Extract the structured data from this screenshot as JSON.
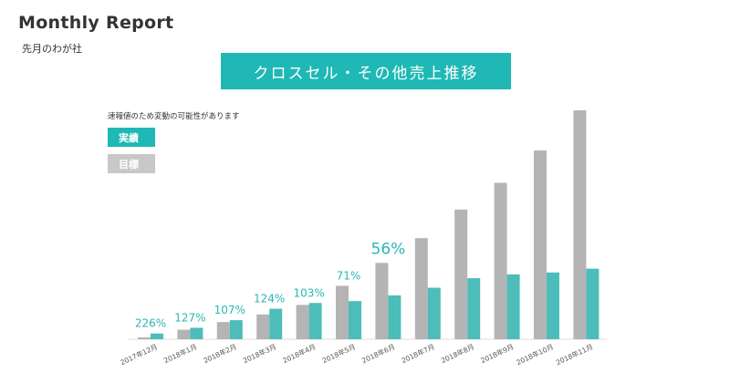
{
  "header": {
    "title": "Monthly Report",
    "subtitle": "先月のわが社"
  },
  "chart_data": {
    "type": "bar",
    "title": "クロスセル・その他売上推移",
    "note": "速報値のため変動の可能性があります",
    "legend": [
      "実績",
      "目標"
    ],
    "legend_position": "top-left",
    "grid": false,
    "categories": [
      "2017年12月",
      "2018年1月",
      "2018年2月",
      "2018年3月",
      "2018年4月",
      "2018年5月",
      "2018年6月",
      "2018年7月",
      "2018年8月",
      "2018年9月",
      "2018年10月",
      "2018年11月"
    ],
    "series": [
      {
        "name": "目標",
        "values": [
          1,
          5,
          9,
          13,
          18,
          28,
          40,
          53,
          68,
          82,
          99,
          120
        ],
        "color": "#b4b4b4"
      },
      {
        "name": "実績",
        "values": [
          3,
          6,
          10,
          16,
          19,
          20,
          23,
          27,
          32,
          34,
          35,
          37
        ],
        "color": "#4dbdba"
      }
    ],
    "data_labels": [
      "226%",
      "127%",
      "107%",
      "124%",
      "103%",
      "71%",
      "56%",
      "",
      "",
      "",
      "",
      ""
    ],
    "ylim": [
      0,
      120
    ]
  }
}
